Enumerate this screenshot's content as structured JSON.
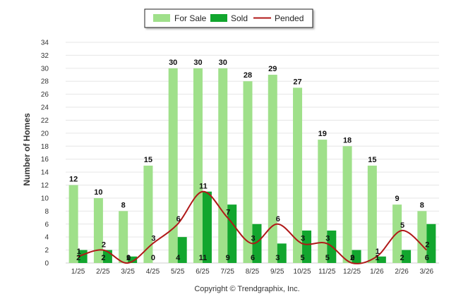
{
  "chart_data": {
    "type": "bar",
    "title": "",
    "xlabel": "",
    "ylabel": "Number of Homes",
    "ylim": [
      0,
      34
    ],
    "yticks": [
      0,
      2,
      4,
      6,
      8,
      10,
      12,
      14,
      16,
      18,
      20,
      22,
      24,
      26,
      28,
      30,
      32,
      34
    ],
    "categories": [
      "1/25",
      "2/25",
      "3/25",
      "4/25",
      "5/25",
      "6/25",
      "7/25",
      "8/25",
      "9/25",
      "10/25",
      "11/25",
      "12/25",
      "1/26",
      "2/26",
      "3/26"
    ],
    "series": [
      {
        "name": "For Sale",
        "kind": "bar",
        "color": "#9fe08a",
        "values": [
          12,
          10,
          8,
          15,
          30,
          30,
          30,
          28,
          29,
          27,
          19,
          18,
          15,
          9,
          8
        ]
      },
      {
        "name": "Sold",
        "kind": "bar",
        "color": "#12a62e",
        "values": [
          2,
          2,
          1,
          0,
          4,
          11,
          9,
          6,
          3,
          5,
          5,
          2,
          1,
          2,
          6
        ]
      },
      {
        "name": "Pended",
        "kind": "line",
        "color": "#b01818",
        "values": [
          1,
          2,
          0,
          3,
          6,
          11,
          7,
          3,
          6,
          3,
          3,
          0,
          1,
          5,
          2
        ]
      }
    ],
    "legend": {
      "position": "top-center"
    },
    "grid": true
  },
  "footer": {
    "credit": "Copyright © Trendgraphix, Inc."
  }
}
